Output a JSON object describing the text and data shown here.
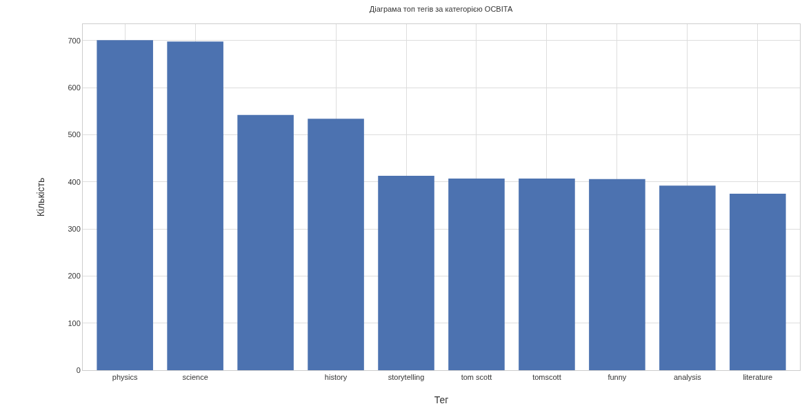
{
  "chart_data": {
    "type": "bar",
    "title": "Діаграма топ тегів за категорією ОСВІТА",
    "xlabel": "Тег",
    "ylabel": "Кількість",
    "categories": [
      "physics",
      "science",
      null,
      "history",
      "storytelling",
      "tom scott",
      "tomscott",
      "funny",
      "analysis",
      "literature"
    ],
    "values": [
      701,
      698,
      542,
      534,
      413,
      407,
      407,
      406,
      392,
      375
    ],
    "color": "#4c72b0",
    "ylim": [
      0,
      735
    ],
    "yticks": [
      0,
      100,
      200,
      300,
      400,
      500,
      600,
      700
    ],
    "grid": true
  }
}
